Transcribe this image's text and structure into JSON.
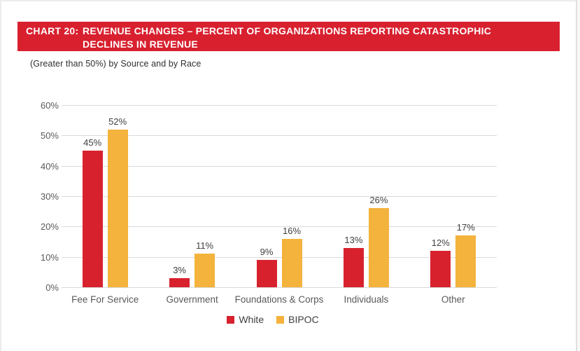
{
  "header": {
    "chart_label": "CHART 20:",
    "title_line1": "REVENUE CHANGES – PERCENT OF ORGANIZATIONS REPORTING CATASTROPHIC",
    "title_line2": "DECLINES IN REVENUE",
    "subtitle": "(Greater than 50%) by Source and by Race"
  },
  "colors": {
    "banner_red": "#d8202f",
    "series_white": "#d7222e",
    "series_bipoc": "#f3b33c",
    "gridline": "#d9d9d9",
    "axis_text": "#595959",
    "data_label_text": "#404040"
  },
  "chart_data": {
    "type": "bar",
    "title": "CHART 20: REVENUE CHANGES – PERCENT OF ORGANIZATIONS REPORTING CATASTROPHIC DECLINES IN REVENUE",
    "subtitle": "(Greater than 50%) by Source and by Race",
    "categories": [
      "Fee For Service",
      "Government",
      "Foundations & Corps",
      "Individuals",
      "Other"
    ],
    "series": [
      {
        "name": "White",
        "color": "#d7222e",
        "values": [
          45,
          3,
          9,
          13,
          12
        ]
      },
      {
        "name": "BIPOC",
        "color": "#f3b33c",
        "values": [
          52,
          11,
          16,
          26,
          17
        ]
      }
    ],
    "unit": "%",
    "y_ticks": [
      "0%",
      "10%",
      "20%",
      "30%",
      "40%",
      "50%",
      "60%"
    ],
    "ylim": [
      0,
      60
    ],
    "grid": true,
    "legend_position": "bottom",
    "xlabel": "",
    "ylabel": ""
  }
}
